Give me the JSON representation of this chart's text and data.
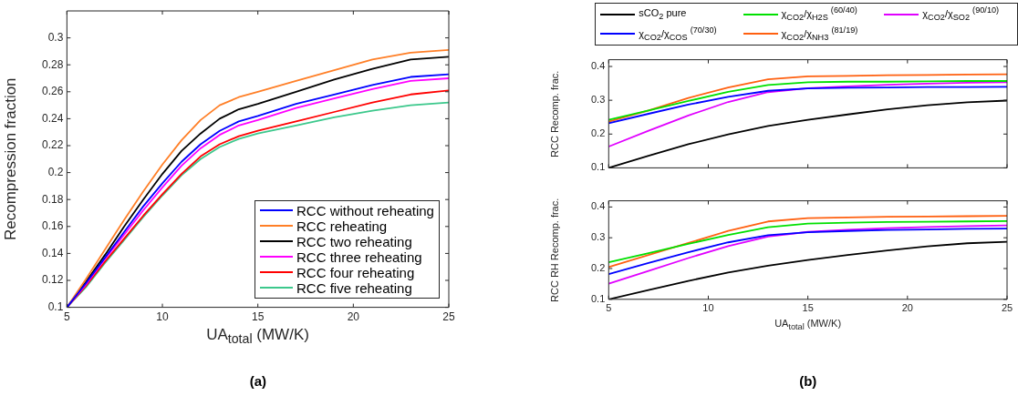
{
  "chart_data": [
    {
      "type": "line",
      "xlabel": "UA$_{total}$ (MW/K)",
      "ylabel": "Recompression fraction",
      "x": [
        5,
        6,
        7,
        8,
        9,
        10,
        11,
        12,
        13,
        14,
        15,
        17,
        19,
        21,
        23,
        25
      ],
      "xlim": [
        5,
        25
      ],
      "xticks": [
        5,
        10,
        15,
        20,
        25
      ],
      "ylim": [
        0.1,
        0.32
      ],
      "yticks": [
        0.1,
        0.12,
        0.14,
        0.16,
        0.18,
        0.2,
        0.22,
        0.24,
        0.26,
        0.28,
        0.3
      ],
      "grid": false,
      "legend": "bottom right",
      "marker": "none",
      "line_style": "solid",
      "annotations": [
        "(a)"
      ],
      "series": [
        {
          "name": "RCC without reheating",
          "color": "#0000ff",
          "values": [
            0.1,
            0.118,
            0.137,
            0.156,
            0.175,
            0.192,
            0.208,
            0.221,
            0.231,
            0.238,
            0.242,
            0.251,
            0.258,
            0.265,
            0.271,
            0.273
          ]
        },
        {
          "name": "RCC reheating",
          "color": "#ff7f27",
          "values": [
            0.1,
            0.121,
            0.143,
            0.165,
            0.186,
            0.206,
            0.224,
            0.239,
            0.25,
            0.256,
            0.26,
            0.268,
            0.276,
            0.284,
            0.289,
            0.291
          ]
        },
        {
          "name": "RCC two reheating",
          "color": "#000000",
          "values": [
            0.1,
            0.119,
            0.139,
            0.16,
            0.18,
            0.199,
            0.216,
            0.229,
            0.24,
            0.247,
            0.251,
            0.26,
            0.269,
            0.277,
            0.284,
            0.286
          ]
        },
        {
          "name": "RCC three reheating",
          "color": "#ff00ff",
          "values": [
            0.1,
            0.117,
            0.136,
            0.154,
            0.172,
            0.189,
            0.205,
            0.218,
            0.228,
            0.235,
            0.239,
            0.248,
            0.255,
            0.262,
            0.268,
            0.27
          ]
        },
        {
          "name": "RCC four reheating",
          "color": "#ff0000",
          "values": [
            0.1,
            0.116,
            0.134,
            0.151,
            0.168,
            0.184,
            0.199,
            0.212,
            0.221,
            0.227,
            0.231,
            0.238,
            0.245,
            0.252,
            0.258,
            0.261
          ]
        },
        {
          "name": "RCC five reheating",
          "color": "#3cc88c",
          "values": [
            0.1,
            0.115,
            0.133,
            0.15,
            0.167,
            0.183,
            0.198,
            0.21,
            0.219,
            0.225,
            0.229,
            0.235,
            0.241,
            0.246,
            0.25,
            0.252
          ]
        }
      ]
    },
    {
      "type": "line",
      "ylabel": "RCC Recomp. frac.",
      "x": [
        5,
        7,
        9,
        11,
        13,
        15,
        17,
        19,
        21,
        23,
        25
      ],
      "xlim": [
        5,
        25
      ],
      "xticks": [
        5,
        10,
        15,
        20,
        25
      ],
      "ylim": [
        0.1,
        0.42
      ],
      "yticks": [
        0.1,
        0.2,
        0.3,
        0.4
      ],
      "tick_labels": "y",
      "grid": false,
      "legend": "top",
      "marker": "none",
      "line_style": "solid",
      "series": [
        {
          "name": "sCO$_{2}$ pure",
          "color": "#000000",
          "values": [
            0.1,
            0.136,
            0.17,
            0.199,
            0.224,
            0.242,
            0.258,
            0.273,
            0.285,
            0.294,
            0.299
          ]
        },
        {
          "name": "χ$_{CO2}$/χ$_{COS}$ $^{(70/30)}$",
          "color": "#0000ff",
          "values": [
            0.232,
            0.26,
            0.287,
            0.31,
            0.328,
            0.335,
            0.337,
            0.338,
            0.339,
            0.339,
            0.34
          ]
        },
        {
          "name": "χ$_{CO2}$/χ$_{H2S}$ $^{(60/40)}$",
          "color": "#00e000",
          "values": [
            0.242,
            0.27,
            0.298,
            0.325,
            0.345,
            0.353,
            0.355,
            0.355,
            0.356,
            0.357,
            0.357
          ]
        },
        {
          "name": "χ$_{CO2}$/χ$_{NH3}$ $^{(81/19)}$",
          "color": "#ff6010",
          "values": [
            0.237,
            0.27,
            0.307,
            0.338,
            0.362,
            0.371,
            0.372,
            0.374,
            0.375,
            0.376,
            0.377
          ]
        },
        {
          "name": "χ$_{CO2}$/χ$_{SO2}$ $^{(90/10)}$",
          "color": "#e000ff",
          "values": [
            0.163,
            0.21,
            0.255,
            0.295,
            0.324,
            0.336,
            0.341,
            0.346,
            0.349,
            0.352,
            0.353
          ]
        }
      ]
    },
    {
      "type": "line",
      "xlabel": "UA$_{total}$ (MW/K)",
      "ylabel": "RCC RH Recomp. frac.",
      "x": [
        5,
        7,
        9,
        11,
        13,
        15,
        17,
        19,
        21,
        23,
        25
      ],
      "xlim": [
        5,
        25
      ],
      "xticks": [
        5,
        10,
        15,
        20,
        25
      ],
      "ylim": [
        0.1,
        0.42
      ],
      "yticks": [
        0.1,
        0.2,
        0.3,
        0.4
      ],
      "grid": false,
      "marker": "none",
      "line_style": "solid",
      "annotations": [
        "(b)"
      ],
      "series": [
        {
          "color": "#000000",
          "values": [
            0.1,
            0.13,
            0.16,
            0.187,
            0.209,
            0.228,
            0.244,
            0.259,
            0.272,
            0.282,
            0.287
          ]
        },
        {
          "color": "#0000ff",
          "values": [
            0.182,
            0.218,
            0.253,
            0.285,
            0.308,
            0.318,
            0.322,
            0.325,
            0.327,
            0.329,
            0.33
          ]
        },
        {
          "color": "#00e000",
          "values": [
            0.22,
            0.25,
            0.28,
            0.309,
            0.334,
            0.346,
            0.349,
            0.351,
            0.352,
            0.353,
            0.354
          ]
        },
        {
          "color": "#ff6010",
          "values": [
            0.205,
            0.244,
            0.283,
            0.322,
            0.353,
            0.364,
            0.366,
            0.368,
            0.369,
            0.37,
            0.371
          ]
        },
        {
          "color": "#e000ff",
          "values": [
            0.151,
            0.192,
            0.234,
            0.273,
            0.304,
            0.319,
            0.326,
            0.331,
            0.335,
            0.338,
            0.34
          ]
        }
      ]
    }
  ]
}
